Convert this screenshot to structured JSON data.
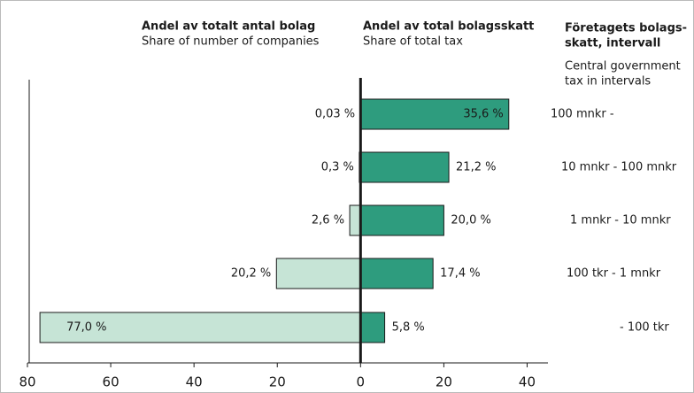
{
  "chart_data": {
    "type": "butterfly",
    "categories": [
      "100 mnkr -",
      "10 mnkr - 100 mnkr",
      "1 mnkr - 10 mnkr",
      "100 tkr - 1 mnkr",
      "- 100 tkr"
    ],
    "category_title": [
      "Företagets bolags-",
      "skatt, intervall"
    ],
    "category_subtitle": [
      "Central government",
      "tax in intervals"
    ],
    "series": [
      {
        "name": "Andel av totalt antal bolag",
        "subtitle": "Share of number of companies",
        "side": "left",
        "color": "#c6e4d6",
        "values": [
          0.03,
          0.3,
          2.6,
          20.2,
          77.0
        ],
        "value_labels": [
          "0,03 %",
          "0,3 %",
          "2,6 %",
          "20,2 %",
          "77,0 %"
        ]
      },
      {
        "name": "Andel av total bolagsskatt",
        "subtitle": "Share of total tax",
        "side": "right",
        "color": "#2e9c7e",
        "values": [
          35.6,
          21.2,
          20.0,
          17.4,
          5.8
        ],
        "value_labels": [
          "35,6 %",
          "21,2 %",
          "20,0 %",
          "17,4 %",
          "5,8 %"
        ]
      }
    ],
    "xlim": [
      -80,
      45
    ],
    "xticks": [
      {
        "value": -80,
        "label": "80"
      },
      {
        "value": -60,
        "label": "60"
      },
      {
        "value": -40,
        "label": "40"
      },
      {
        "value": -20,
        "label": "20"
      },
      0,
      20,
      40
    ]
  }
}
